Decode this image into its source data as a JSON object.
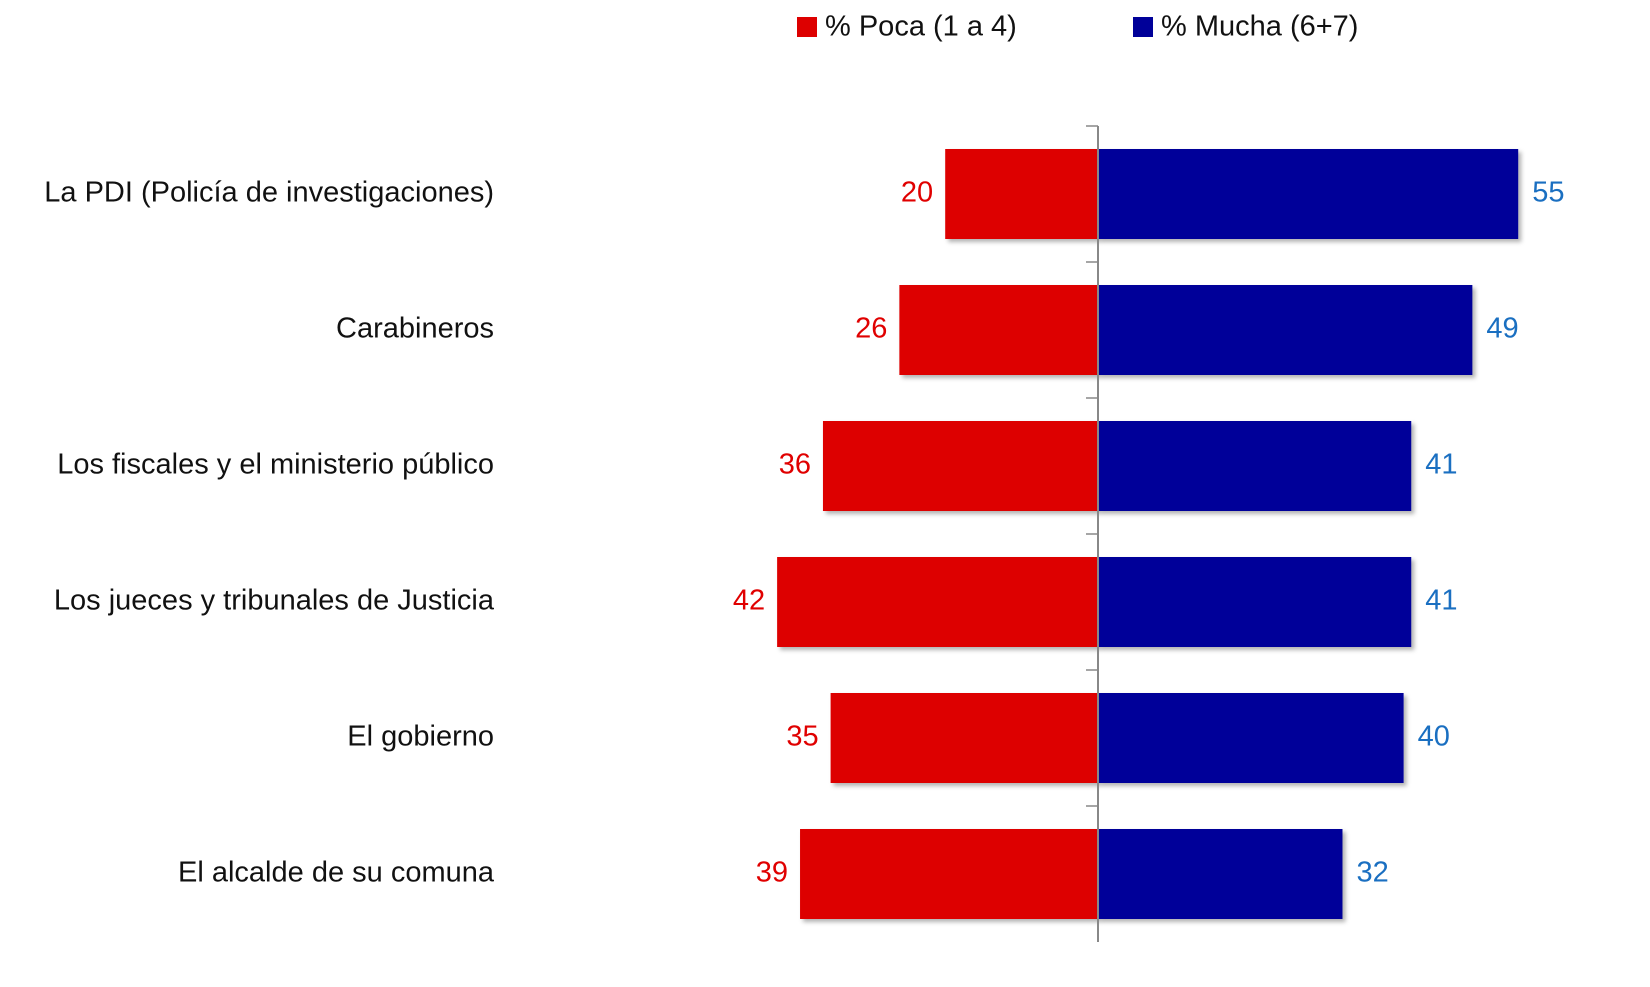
{
  "chart_data": {
    "type": "diverging-bar",
    "categories": [
      "La PDI (Policía de investigaciones)",
      "Carabineros",
      "Los fiscales y el ministerio público",
      "Los jueces y tribunales de Justicia",
      "El gobierno",
      "El alcalde de su comuna"
    ],
    "series": [
      {
        "name": "% Poca (1 a 4)",
        "color": "#dd0000",
        "label_color": "#e00000",
        "values": [
          20,
          26,
          36,
          42,
          35,
          39
        ]
      },
      {
        "name": "% Mucha (6+7)",
        "color": "#000099",
        "label_color": "#1a6fc1",
        "values": [
          55,
          49,
          41,
          41,
          40,
          32
        ]
      }
    ]
  }
}
